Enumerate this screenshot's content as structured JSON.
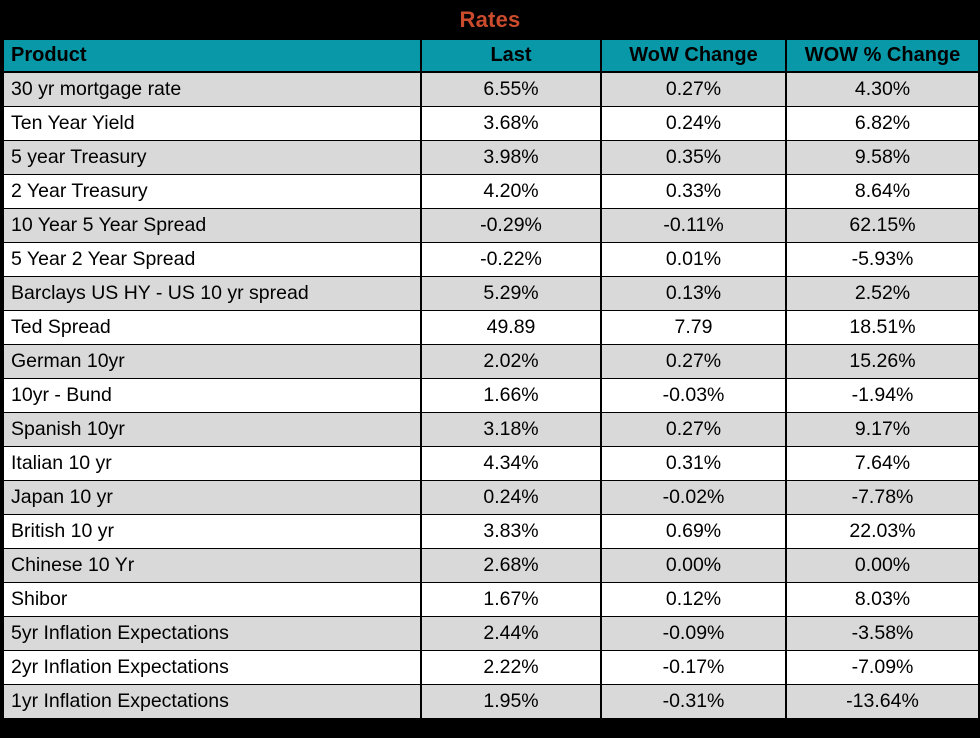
{
  "title": "Rates",
  "colors": {
    "banner_bg": "#000000",
    "title_text": "#cb4b2d",
    "header_bg": "#0998a8",
    "header_text": "#000000",
    "row_alt_bg": "#d9d9d9",
    "row_bg": "#ffffff",
    "grid_border": "#000000"
  },
  "chart_data": {
    "type": "table",
    "title": "Rates",
    "columns": [
      "Product",
      "Last",
      "WoW Change",
      "WOW % Change"
    ],
    "rows": [
      [
        "30 yr mortgage rate",
        "6.55%",
        "0.27%",
        "4.30%"
      ],
      [
        "Ten Year Yield",
        "3.68%",
        "0.24%",
        "6.82%"
      ],
      [
        "5 year Treasury",
        "3.98%",
        "0.35%",
        "9.58%"
      ],
      [
        "2 Year Treasury",
        "4.20%",
        "0.33%",
        "8.64%"
      ],
      [
        "10 Year 5 Year Spread",
        "-0.29%",
        "-0.11%",
        "62.15%"
      ],
      [
        "5 Year 2 Year Spread",
        "-0.22%",
        "0.01%",
        "-5.93%"
      ],
      [
        "Barclays US HY - US 10 yr spread",
        "5.29%",
        "0.13%",
        "2.52%"
      ],
      [
        "Ted Spread",
        "49.89",
        "7.79",
        "18.51%"
      ],
      [
        "German 10yr",
        "2.02%",
        "0.27%",
        "15.26%"
      ],
      [
        "10yr - Bund",
        "1.66%",
        "-0.03%",
        "-1.94%"
      ],
      [
        "Spanish 10yr",
        "3.18%",
        "0.27%",
        "9.17%"
      ],
      [
        "Italian 10 yr",
        "4.34%",
        "0.31%",
        "7.64%"
      ],
      [
        "Japan 10 yr",
        "0.24%",
        "-0.02%",
        "-7.78%"
      ],
      [
        "British 10 yr",
        "3.83%",
        "0.69%",
        "22.03%"
      ],
      [
        "Chinese 10 Yr",
        "2.68%",
        "0.00%",
        "0.00%"
      ],
      [
        "Shibor",
        "1.67%",
        "0.12%",
        "8.03%"
      ],
      [
        "5yr Inflation Expectations",
        "2.44%",
        "-0.09%",
        "-3.58%"
      ],
      [
        "2yr Inflation Expectations",
        "2.22%",
        "-0.17%",
        "-7.09%"
      ],
      [
        "1yr Inflation Expectations",
        "1.95%",
        "-0.31%",
        "-13.64%"
      ]
    ],
    "layout": {
      "first_column_align": "left",
      "value_columns_align": "center",
      "row_striping": "alternating gray/white starting gray",
      "header_style": "teal background, bold black text",
      "title_style": "black banner, orange bold centered text"
    }
  }
}
